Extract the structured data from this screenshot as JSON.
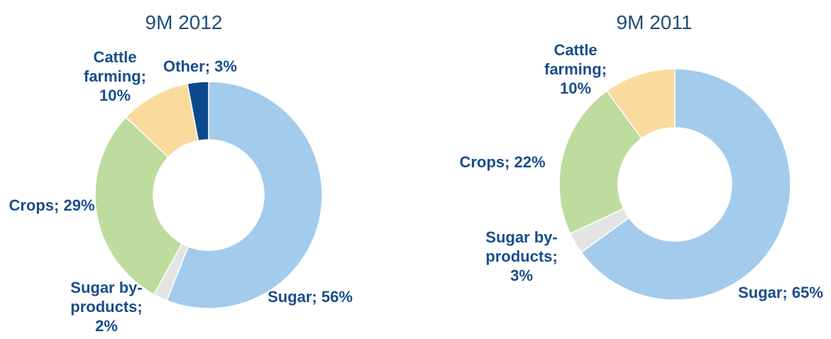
{
  "chart_data": [
    {
      "type": "pie",
      "variant": "donut",
      "title": "9M 2012",
      "slices": [
        {
          "label": "Sugar",
          "label_lines": [
            "Sugar; 56%"
          ],
          "value": 56,
          "color": "#A3CBEC"
        },
        {
          "label": "Sugar by-products",
          "label_lines": [
            "Sugar by-",
            "products;",
            "2%"
          ],
          "value": 2,
          "color": "#E4E4E4"
        },
        {
          "label": "Crops",
          "label_lines": [
            "Crops; 29%"
          ],
          "value": 29,
          "color": "#BEDC9E"
        },
        {
          "label": "Cattle farming",
          "label_lines": [
            "Cattle",
            "farming;",
            "10%"
          ],
          "value": 10,
          "color": "#FADB9E"
        },
        {
          "label": "Other",
          "label_lines": [
            "Other; 3%"
          ],
          "value": 3,
          "color": "#0A4A8C"
        }
      ]
    },
    {
      "type": "pie",
      "variant": "donut",
      "title": "9M 2011",
      "slices": [
        {
          "label": "Sugar",
          "label_lines": [
            "Sugar; 65%"
          ],
          "value": 65,
          "color": "#A3CBEC"
        },
        {
          "label": "Sugar by-products",
          "label_lines": [
            "Sugar by-",
            "products;",
            "3%"
          ],
          "value": 3,
          "color": "#E4E4E4"
        },
        {
          "label": "Crops",
          "label_lines": [
            "Crops; 22%"
          ],
          "value": 22,
          "color": "#BEDC9E"
        },
        {
          "label": "Cattle farming",
          "label_lines": [
            "Cattle",
            "farming;",
            "10%"
          ],
          "value": 10,
          "color": "#FADB9E"
        }
      ]
    }
  ],
  "colors": {
    "title": "#1F4E79",
    "label": "#1A4D8C"
  }
}
